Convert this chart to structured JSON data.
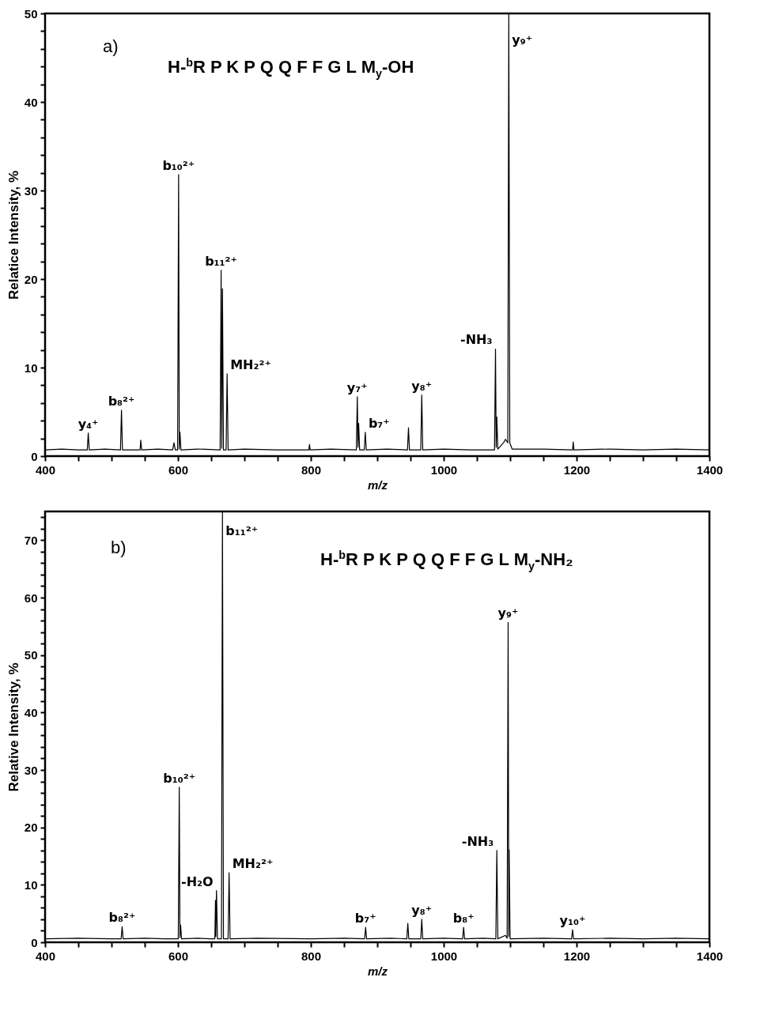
{
  "chart_data": [
    {
      "type": "line",
      "color": "#000000",
      "xlabel": "m/z",
      "ylabel": "Relatice Intensity, %",
      "xlim": [
        400,
        1400
      ],
      "ylim": [
        0,
        50
      ],
      "xticks": [
        400,
        {
          "value": 450,
          "label": null
        },
        600,
        {
          "value": 500,
          "label": null
        },
        {
          "value": 550,
          "label": null
        },
        {
          "value": 650,
          "label": null
        },
        {
          "value": 700,
          "label": null
        },
        {
          "value": 750,
          "label": null
        },
        800,
        {
          "value": 850,
          "label": null
        },
        {
          "value": 900,
          "label": null
        },
        {
          "value": 950,
          "label": null
        },
        1000,
        {
          "value": 1050,
          "label": null
        },
        {
          "value": 1100,
          "label": null
        },
        {
          "value": 1150,
          "label": null
        },
        1200,
        {
          "value": 1250,
          "label": null
        },
        {
          "value": 1300,
          "label": null
        },
        {
          "value": 1350,
          "label": null
        },
        1400
      ],
      "yticks": [
        0,
        {
          "value": 2,
          "label": null
        },
        {
          "value": 4,
          "label": null
        },
        {
          "value": 6,
          "label": null
        },
        {
          "value": 8,
          "label": null
        },
        10,
        {
          "value": 12,
          "label": null
        },
        {
          "value": 14,
          "label": null
        },
        {
          "value": 16,
          "label": null
        },
        {
          "value": 18,
          "label": null
        },
        20,
        {
          "value": 22,
          "label": null
        },
        {
          "value": 24,
          "label": null
        },
        {
          "value": 26,
          "label": null
        },
        {
          "value": 28,
          "label": null
        },
        30,
        {
          "value": 32,
          "label": null
        },
        {
          "value": 34,
          "label": null
        },
        {
          "value": 36,
          "label": null
        },
        {
          "value": 38,
          "label": null
        },
        40,
        {
          "value": 42,
          "label": null
        },
        {
          "value": 44,
          "label": null
        },
        {
          "value": 46,
          "label": null
        },
        {
          "value": 48,
          "label": null
        },
        50
      ],
      "x": [
        400,
        425,
        450,
        463.5,
        465,
        466.5,
        490,
        513.5,
        515,
        516.5,
        543,
        544,
        545.5,
        570,
        592,
        594,
        596,
        599.5,
        601,
        602,
        603,
        604.5,
        630,
        663.5,
        665,
        666,
        667,
        668.5,
        672.5,
        674,
        675.5,
        700,
        750,
        797,
        798,
        799,
        830,
        868.5,
        870,
        871,
        872,
        873.5,
        880.5,
        882,
        883.5,
        915,
        945.5,
        947,
        948.5,
        965.5,
        967,
        968.5,
        1000,
        1040,
        1076.5,
        1078,
        1079,
        1080,
        1081.5,
        1090,
        1093,
        1096.5,
        1098,
        1099.5,
        1103,
        1150,
        1194,
        1195,
        1196,
        1250,
        1300,
        1350,
        1400
      ],
      "values": [
        0.7,
        0.8,
        0.7,
        0.7,
        2.6,
        0.7,
        0.8,
        0.7,
        5.2,
        0.7,
        0.7,
        1.8,
        0.7,
        0.8,
        0.7,
        1.5,
        0.7,
        0.7,
        31.8,
        0.8,
        2.7,
        0.7,
        0.8,
        0.7,
        21.0,
        0.9,
        18.9,
        0.7,
        0.7,
        9.3,
        0.7,
        0.8,
        0.7,
        0.7,
        1.3,
        0.7,
        0.8,
        0.7,
        6.7,
        1.0,
        3.7,
        0.7,
        0.7,
        2.7,
        0.7,
        0.8,
        0.7,
        3.2,
        0.7,
        0.7,
        6.9,
        0.7,
        0.8,
        0.7,
        0.7,
        12.1,
        1.0,
        4.4,
        0.8,
        1.5,
        1.9,
        1.5,
        50,
        1.5,
        0.8,
        0.8,
        0.7,
        1.6,
        0.7,
        0.8,
        0.7,
        0.8,
        0.7
      ],
      "annotations": [
        "a)",
        "H-$^{b}$R P K P Q Q F F G L M$_{y}$-OH",
        {
          "text": "y₄⁺",
          "x": 465,
          "y": 2.6
        },
        {
          "text": "b₈²⁺",
          "x": 515,
          "y": 5.2
        },
        {
          "text": "b₁₀²⁺",
          "x": 601,
          "y": 31.8
        },
        {
          "text": "b₁₁²⁺",
          "x": 665,
          "y": 21.0
        },
        {
          "text": "MH₂²⁺",
          "x": 674,
          "y": 9.3
        },
        {
          "text": "y₇⁺",
          "x": 870,
          "y": 6.7
        },
        {
          "text": "b₇⁺",
          "x": 882,
          "y": 2.7
        },
        {
          "text": "y₈⁺",
          "x": 967,
          "y": 6.9
        },
        {
          "text": "-NH₃",
          "x": 1078,
          "y": 12.1
        },
        {
          "text": "y₉⁺",
          "x": 1098,
          "y": 46
        }
      ]
    },
    {
      "type": "line",
      "color": "#000000",
      "xlabel": "m/z",
      "ylabel": "Relative Intensity, %",
      "xlim": [
        400,
        1400
      ],
      "ylim": [
        0,
        75
      ],
      "xticks": [
        400,
        {
          "value": 450,
          "label": null
        },
        600,
        {
          "value": 500,
          "label": null
        },
        {
          "value": 550,
          "label": null
        },
        {
          "value": 650,
          "label": null
        },
        {
          "value": 700,
          "label": null
        },
        {
          "value": 750,
          "label": null
        },
        800,
        {
          "value": 850,
          "label": null
        },
        {
          "value": 900,
          "label": null
        },
        {
          "value": 950,
          "label": null
        },
        1000,
        {
          "value": 1050,
          "label": null
        },
        {
          "value": 1100,
          "label": null
        },
        {
          "value": 1150,
          "label": null
        },
        1200,
        {
          "value": 1250,
          "label": null
        },
        {
          "value": 1300,
          "label": null
        },
        {
          "value": 1350,
          "label": null
        },
        1400
      ],
      "yticks": [
        0,
        {
          "value": 2,
          "label": null
        },
        {
          "value": 4,
          "label": null
        },
        {
          "value": 6,
          "label": null
        },
        {
          "value": 8,
          "label": null
        },
        10,
        {
          "value": 12,
          "label": null
        },
        {
          "value": 14,
          "label": null
        },
        {
          "value": 16,
          "label": null
        },
        {
          "value": 18,
          "label": null
        },
        20,
        {
          "value": 22,
          "label": null
        },
        {
          "value": 24,
          "label": null
        },
        {
          "value": 26,
          "label": null
        },
        {
          "value": 28,
          "label": null
        },
        30,
        {
          "value": 32,
          "label": null
        },
        {
          "value": 34,
          "label": null
        },
        {
          "value": 36,
          "label": null
        },
        {
          "value": 38,
          "label": null
        },
        40,
        {
          "value": 42,
          "label": null
        },
        {
          "value": 44,
          "label": null
        },
        {
          "value": 46,
          "label": null
        },
        {
          "value": 48,
          "label": null
        },
        50,
        {
          "value": 52,
          "label": null
        },
        {
          "value": 54,
          "label": null
        },
        {
          "value": 56,
          "label": null
        },
        {
          "value": 58,
          "label": null
        },
        60,
        {
          "value": 62,
          "label": null
        },
        {
          "value": 64,
          "label": null
        },
        {
          "value": 66,
          "label": null
        },
        {
          "value": 68,
          "label": null
        },
        70,
        {
          "value": 72,
          "label": null
        },
        {
          "value": 74,
          "label": null
        }
      ],
      "x": [
        400,
        450,
        500,
        514.5,
        516,
        517.5,
        550,
        580,
        600.5,
        602,
        603,
        604,
        605.5,
        630,
        650,
        655.5,
        656.5,
        657,
        658,
        659.5,
        665.5,
        667,
        668.5,
        675.5,
        677,
        678.5,
        720,
        800,
        850,
        881,
        882.5,
        884,
        920,
        944.5,
        946,
        947.5,
        965.5,
        967,
        968.5,
        1000,
        1028.5,
        1030,
        1031.5,
        1060,
        1078.5,
        1080,
        1081.5,
        1093,
        1095.5,
        1097,
        1098,
        1098.5,
        1100,
        1150,
        1192.5,
        1194,
        1195.5,
        1250,
        1300,
        1350,
        1400
      ],
      "values": [
        0.6,
        0.7,
        0.6,
        0.6,
        2.7,
        0.6,
        0.7,
        0.6,
        0.6,
        27.0,
        0.8,
        3.0,
        0.6,
        0.7,
        0.6,
        0.6,
        7.3,
        1.0,
        9.0,
        0.6,
        0.6,
        75,
        0.6,
        0.6,
        12.1,
        0.6,
        0.7,
        0.6,
        0.7,
        0.6,
        2.6,
        0.6,
        0.7,
        0.6,
        3.3,
        0.6,
        0.6,
        4.0,
        0.6,
        0.7,
        0.6,
        2.6,
        0.6,
        0.7,
        0.6,
        16.0,
        0.6,
        1.2,
        0.7,
        55.7,
        1.0,
        16.1,
        0.6,
        0.7,
        0.6,
        2.2,
        0.6,
        0.7,
        0.6,
        0.7,
        0.6
      ],
      "annotations": [
        "b)",
        "H-$^{b}$R P K P Q Q F F G L M$_{y}$-NH₂",
        {
          "text": "b₈²⁺",
          "x": 516,
          "y": 2.7
        },
        {
          "text": "b₁₀²⁺",
          "x": 602,
          "y": 27.0
        },
        {
          "text": "-H₂O",
          "x": 658,
          "y": 9.0
        },
        {
          "text": "b₁₁²⁺",
          "x": 667,
          "y": 70
        },
        {
          "text": "MH₂²⁺",
          "x": 677,
          "y": 12.1
        },
        {
          "text": "b₇⁺",
          "x": 882.5,
          "y": 2.6
        },
        {
          "text": "y₈⁺",
          "x": 967,
          "y": 4.0
        },
        {
          "text": "b₈⁺",
          "x": 1030,
          "y": 2.6
        },
        {
          "text": "-NH₃",
          "x": 1080,
          "y": 16.0
        },
        {
          "text": "y₉⁺",
          "x": 1097,
          "y": 55.7
        },
        {
          "text": "y₁₀⁺",
          "x": 1194,
          "y": 2.2
        }
      ]
    }
  ]
}
